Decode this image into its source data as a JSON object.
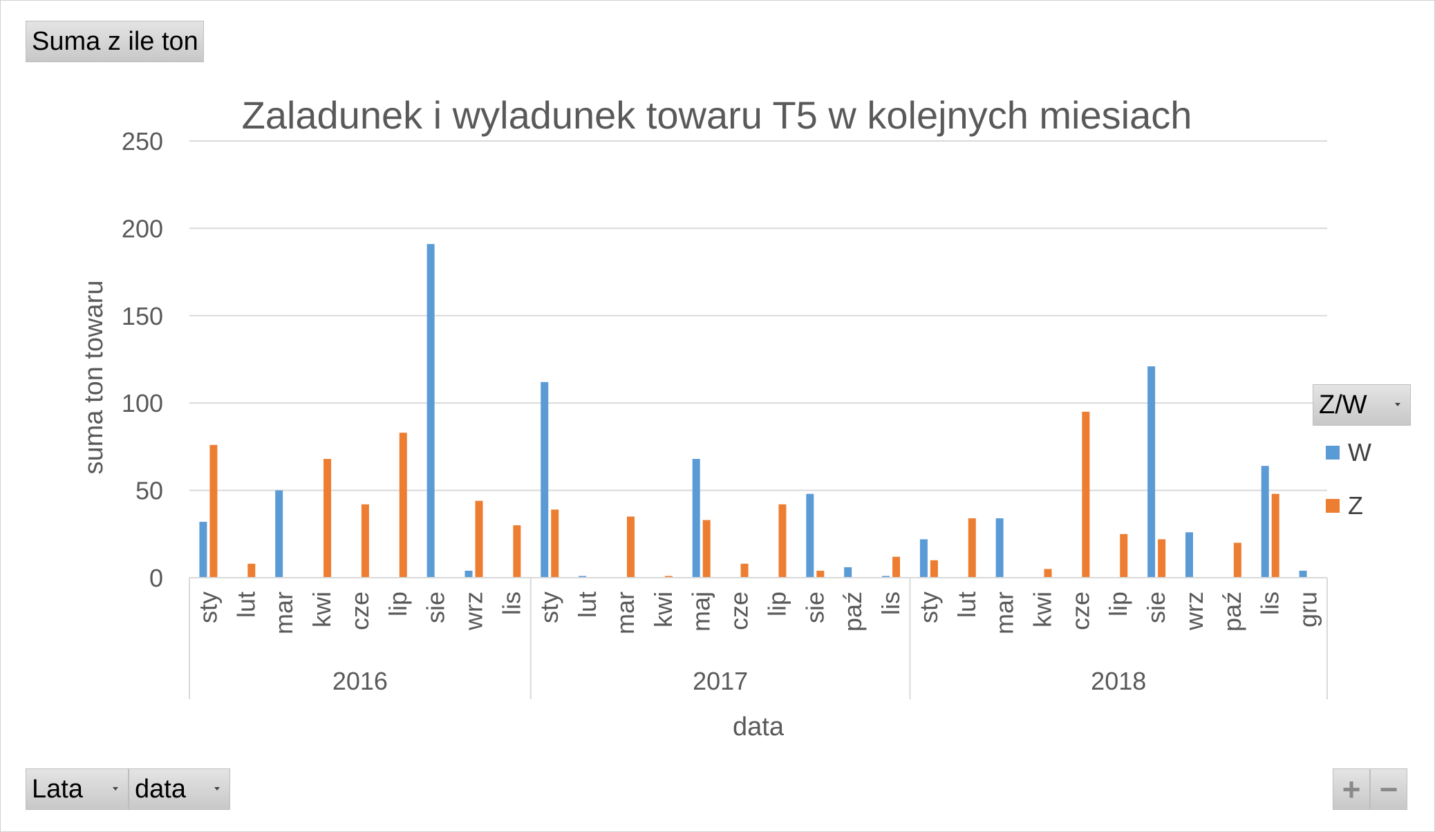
{
  "buttons": {
    "values_field": "Suma z ile ton",
    "legend_field": "Z/W",
    "axis_field_years": "Lata",
    "axis_field_date": "data",
    "zoom_in": "+",
    "zoom_out": "−"
  },
  "colors": {
    "W": "#5b9bd5",
    "Z": "#ed7d31",
    "grid": "#d9d9d9",
    "text": "#595959"
  },
  "chart_data": {
    "type": "bar",
    "title": "Zaladunek i wyladunek towaru T5 w kolejnych miesiach",
    "xlabel": "data",
    "ylabel": "suma ton towaru",
    "ylim": [
      0,
      250
    ],
    "yticks": [
      0,
      50,
      100,
      150,
      200,
      250
    ],
    "grid": true,
    "legend_position": "right",
    "legend": [
      "W",
      "Z"
    ],
    "groups": [
      {
        "year": "2016",
        "months": [
          "sty",
          "lut",
          "mar",
          "kwi",
          "cze",
          "lip",
          "sie",
          "wrz",
          "lis"
        ]
      },
      {
        "year": "2017",
        "months": [
          "sty",
          "lut",
          "mar",
          "kwi",
          "maj",
          "cze",
          "lip",
          "sie",
          "paź",
          "lis"
        ]
      },
      {
        "year": "2018",
        "months": [
          "sty",
          "lut",
          "mar",
          "kwi",
          "cze",
          "lip",
          "sie",
          "wrz",
          "paź",
          "lis",
          "gru"
        ]
      }
    ],
    "series": [
      {
        "name": "W",
        "values": [
          32,
          0,
          50,
          0,
          0,
          0,
          191,
          4,
          0,
          112,
          1,
          0,
          0,
          68,
          0,
          0,
          48,
          6,
          1,
          22,
          0,
          34,
          0,
          0,
          0,
          121,
          26,
          0,
          64,
          4
        ]
      },
      {
        "name": "Z",
        "values": [
          76,
          8,
          0,
          68,
          42,
          83,
          0,
          44,
          30,
          39,
          0,
          35,
          1,
          33,
          8,
          42,
          4,
          0,
          12,
          10,
          34,
          0,
          5,
          95,
          25,
          22,
          0,
          20,
          48,
          0
        ]
      }
    ]
  }
}
